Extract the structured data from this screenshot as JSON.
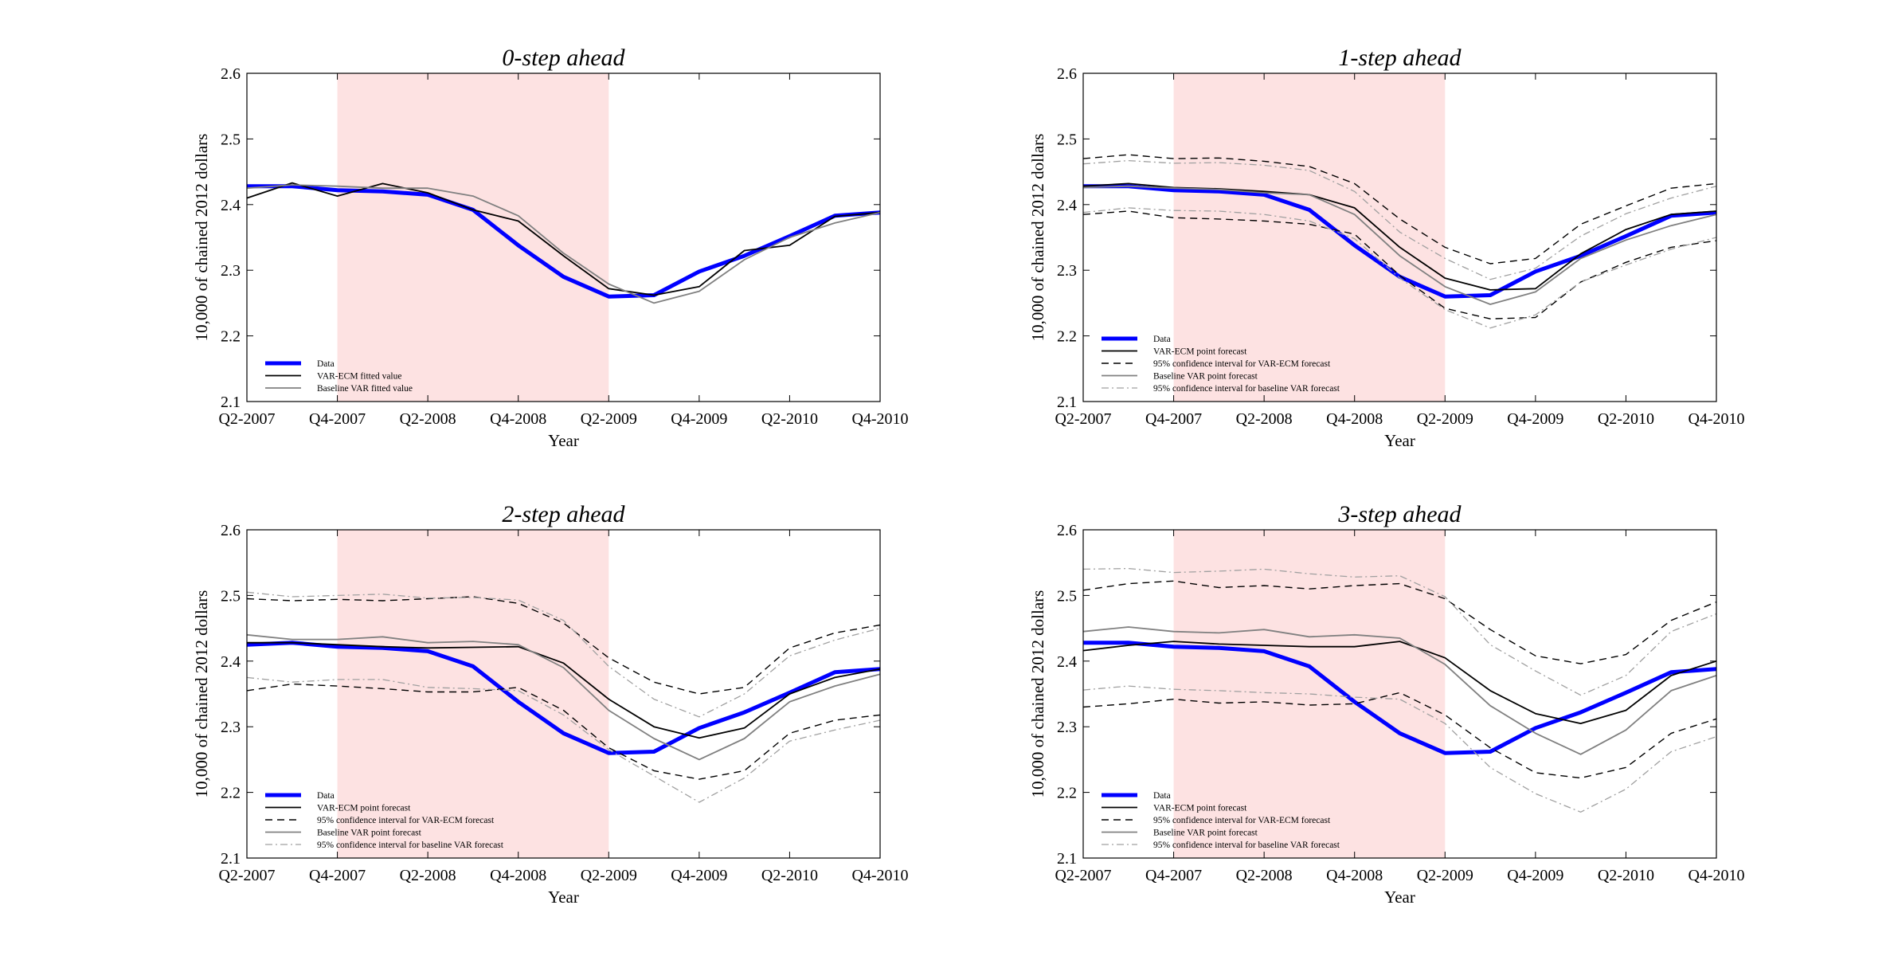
{
  "colors": {
    "data": "#0000ff",
    "varecm": "#000000",
    "baseline": "#808080",
    "recession_shade": "#fde2e2"
  },
  "x_ticks": [
    "Q2-2007",
    "Q4-2007",
    "Q2-2008",
    "Q4-2008",
    "Q2-2009",
    "Q4-2009",
    "Q2-2010",
    "Q4-2010"
  ],
  "y_ticks": [
    "2.1",
    "2.2",
    "2.3",
    "2.4",
    "2.5",
    "2.6"
  ],
  "chart_data": [
    {
      "type": "line",
      "title": "0-step ahead",
      "xlabel": "Year",
      "ylabel": "10,000 of chained 2012 dollars",
      "ylim": [
        2.1,
        2.6
      ],
      "x": [
        "Q2-2007",
        "Q3-2007",
        "Q4-2007",
        "Q1-2008",
        "Q2-2008",
        "Q3-2008",
        "Q4-2008",
        "Q1-2009",
        "Q2-2009",
        "Q3-2009",
        "Q4-2009",
        "Q1-2010",
        "Q2-2010",
        "Q3-2010",
        "Q4-2010"
      ],
      "shaded_region": [
        "Q4-2007",
        "Q2-2009"
      ],
      "grid": false,
      "legend_position": "bottom-left",
      "series": [
        {
          "name": "Data",
          "style": "data",
          "values": [
            2.428,
            2.428,
            2.422,
            2.42,
            2.415,
            2.392,
            2.338,
            2.29,
            2.26,
            2.262,
            2.298,
            2.322,
            2.352,
            2.383,
            2.388
          ]
        },
        {
          "name": "VAR-ECM fitted value",
          "style": "ecm",
          "values": [
            2.41,
            2.433,
            2.413,
            2.432,
            2.418,
            2.392,
            2.375,
            2.322,
            2.272,
            2.262,
            2.275,
            2.33,
            2.338,
            2.382,
            2.388
          ]
        },
        {
          "name": "Baseline VAR fitted value",
          "style": "base",
          "values": [
            2.425,
            2.43,
            2.428,
            2.425,
            2.425,
            2.413,
            2.383,
            2.326,
            2.279,
            2.25,
            2.268,
            2.316,
            2.35,
            2.372,
            2.388
          ]
        }
      ]
    },
    {
      "type": "line",
      "title": "1-step ahead",
      "xlabel": "Year",
      "ylabel": "10,000 of chained 2012 dollars",
      "ylim": [
        2.1,
        2.6
      ],
      "x": [
        "Q2-2007",
        "Q3-2007",
        "Q4-2007",
        "Q1-2008",
        "Q2-2008",
        "Q3-2008",
        "Q4-2008",
        "Q1-2009",
        "Q2-2009",
        "Q3-2009",
        "Q4-2009",
        "Q1-2010",
        "Q2-2010",
        "Q3-2010",
        "Q4-2010"
      ],
      "shaded_region": [
        "Q4-2007",
        "Q2-2009"
      ],
      "grid": false,
      "legend_position": "bottom-left",
      "series": [
        {
          "name": "Data",
          "style": "data",
          "values": [
            2.428,
            2.428,
            2.422,
            2.42,
            2.415,
            2.392,
            2.338,
            2.29,
            2.26,
            2.262,
            2.298,
            2.322,
            2.352,
            2.383,
            2.388
          ]
        },
        {
          "name": "VAR-ECM point forecast",
          "style": "ecm",
          "values": [
            2.428,
            2.432,
            2.426,
            2.424,
            2.42,
            2.415,
            2.395,
            2.335,
            2.288,
            2.27,
            2.272,
            2.325,
            2.362,
            2.385,
            2.39
          ]
        },
        {
          "name": "95% confidence interval for VAR-ECM forecast",
          "style": "ecm_ci",
          "values": [
            2.47,
            2.476,
            2.47,
            2.471,
            2.466,
            2.458,
            2.432,
            2.378,
            2.335,
            2.31,
            2.318,
            2.37,
            2.398,
            2.425,
            2.432
          ]
        },
        {
          "name": "",
          "style": "ecm_ci",
          "values": [
            2.385,
            2.39,
            2.38,
            2.378,
            2.375,
            2.37,
            2.355,
            2.292,
            2.242,
            2.226,
            2.228,
            2.282,
            2.312,
            2.335,
            2.345
          ]
        },
        {
          "name": "Baseline VAR point forecast",
          "style": "base",
          "values": [
            2.426,
            2.428,
            2.425,
            2.423,
            2.418,
            2.415,
            2.385,
            2.322,
            2.275,
            2.248,
            2.267,
            2.318,
            2.346,
            2.368,
            2.385
          ]
        },
        {
          "name": "95% confidence interval for baseline VAR forecast",
          "style": "base_ci",
          "values": [
            2.462,
            2.467,
            2.463,
            2.464,
            2.46,
            2.452,
            2.42,
            2.358,
            2.318,
            2.286,
            2.303,
            2.352,
            2.386,
            2.41,
            2.428
          ]
        },
        {
          "name": "",
          "style": "base_ci",
          "values": [
            2.388,
            2.395,
            2.391,
            2.39,
            2.385,
            2.375,
            2.348,
            2.288,
            2.24,
            2.212,
            2.232,
            2.282,
            2.308,
            2.332,
            2.35
          ]
        }
      ]
    },
    {
      "type": "line",
      "title": "2-step ahead",
      "xlabel": "Year",
      "ylabel": "10,000 of chained 2012 dollars",
      "ylim": [
        2.1,
        2.6
      ],
      "x": [
        "Q2-2007",
        "Q3-2007",
        "Q4-2007",
        "Q1-2008",
        "Q2-2008",
        "Q3-2008",
        "Q4-2008",
        "Q1-2009",
        "Q2-2009",
        "Q3-2009",
        "Q4-2009",
        "Q1-2010",
        "Q2-2010",
        "Q3-2010",
        "Q4-2010"
      ],
      "shaded_region": [
        "Q4-2007",
        "Q2-2009"
      ],
      "grid": false,
      "legend_position": "bottom-left",
      "series": [
        {
          "name": "Data",
          "style": "data",
          "values": [
            2.425,
            2.428,
            2.422,
            2.42,
            2.415,
            2.392,
            2.338,
            2.29,
            2.26,
            2.262,
            2.298,
            2.322,
            2.352,
            2.383,
            2.388
          ]
        },
        {
          "name": "VAR-ECM point forecast",
          "style": "ecm",
          "values": [
            2.428,
            2.428,
            2.425,
            2.422,
            2.42,
            2.421,
            2.422,
            2.397,
            2.342,
            2.3,
            2.283,
            2.298,
            2.35,
            2.375,
            2.388
          ]
        },
        {
          "name": "95% confidence interval for VAR-ECM forecast",
          "style": "ecm_ci",
          "values": [
            2.495,
            2.492,
            2.494,
            2.492,
            2.495,
            2.498,
            2.488,
            2.458,
            2.405,
            2.368,
            2.35,
            2.36,
            2.42,
            2.443,
            2.455
          ]
        },
        {
          "name": "",
          "style": "ecm_ci",
          "values": [
            2.355,
            2.365,
            2.362,
            2.358,
            2.353,
            2.353,
            2.36,
            2.325,
            2.268,
            2.233,
            2.22,
            2.233,
            2.29,
            2.31,
            2.318
          ]
        },
        {
          "name": "Baseline VAR point forecast",
          "style": "base",
          "values": [
            2.44,
            2.433,
            2.433,
            2.437,
            2.428,
            2.43,
            2.425,
            2.39,
            2.325,
            2.282,
            2.25,
            2.282,
            2.338,
            2.362,
            2.38
          ]
        },
        {
          "name": "95% confidence interval for baseline VAR forecast",
          "style": "base_ci",
          "values": [
            2.505,
            2.498,
            2.5,
            2.502,
            2.496,
            2.497,
            2.493,
            2.462,
            2.392,
            2.342,
            2.315,
            2.35,
            2.408,
            2.432,
            2.45
          ]
        },
        {
          "name": "",
          "style": "base_ci",
          "values": [
            2.375,
            2.368,
            2.372,
            2.372,
            2.36,
            2.358,
            2.355,
            2.318,
            2.265,
            2.225,
            2.185,
            2.222,
            2.278,
            2.295,
            2.31
          ]
        }
      ]
    },
    {
      "type": "line",
      "title": "3-step ahead",
      "xlabel": "Year",
      "ylabel": "10,000 of chained 2012 dollars",
      "ylim": [
        2.1,
        2.6
      ],
      "x": [
        "Q2-2007",
        "Q3-2007",
        "Q4-2007",
        "Q1-2008",
        "Q2-2008",
        "Q3-2008",
        "Q4-2008",
        "Q1-2009",
        "Q2-2009",
        "Q3-2009",
        "Q4-2009",
        "Q1-2010",
        "Q2-2010",
        "Q3-2010",
        "Q4-2010"
      ],
      "shaded_region": [
        "Q4-2007",
        "Q2-2009"
      ],
      "grid": false,
      "legend_position": "bottom-left",
      "series": [
        {
          "name": "Data",
          "style": "data",
          "values": [
            2.428,
            2.428,
            2.422,
            2.42,
            2.415,
            2.392,
            2.338,
            2.29,
            2.26,
            2.262,
            2.298,
            2.322,
            2.352,
            2.383,
            2.388
          ]
        },
        {
          "name": "VAR-ECM point forecast",
          "style": "ecm",
          "values": [
            2.416,
            2.424,
            2.43,
            2.426,
            2.424,
            2.422,
            2.422,
            2.43,
            2.405,
            2.355,
            2.32,
            2.305,
            2.325,
            2.378,
            2.4
          ]
        },
        {
          "name": "95% confidence interval for VAR-ECM forecast",
          "style": "ecm_ci",
          "values": [
            2.508,
            2.518,
            2.522,
            2.512,
            2.515,
            2.51,
            2.515,
            2.518,
            2.495,
            2.448,
            2.408,
            2.396,
            2.41,
            2.462,
            2.49
          ]
        },
        {
          "name": "",
          "style": "ecm_ci",
          "values": [
            2.33,
            2.335,
            2.342,
            2.336,
            2.338,
            2.333,
            2.335,
            2.352,
            2.318,
            2.268,
            2.23,
            2.222,
            2.238,
            2.29,
            2.312
          ]
        },
        {
          "name": "Baseline VAR point forecast",
          "style": "base",
          "values": [
            2.445,
            2.452,
            2.445,
            2.443,
            2.448,
            2.437,
            2.44,
            2.435,
            2.395,
            2.332,
            2.29,
            2.258,
            2.295,
            2.355,
            2.378
          ]
        },
        {
          "name": "95% confidence interval for baseline VAR forecast",
          "style": "base_ci",
          "values": [
            2.54,
            2.541,
            2.535,
            2.537,
            2.54,
            2.533,
            2.528,
            2.53,
            2.498,
            2.425,
            2.385,
            2.348,
            2.378,
            2.445,
            2.472
          ]
        },
        {
          "name": "",
          "style": "base_ci",
          "values": [
            2.356,
            2.362,
            2.357,
            2.355,
            2.352,
            2.35,
            2.345,
            2.342,
            2.305,
            2.238,
            2.198,
            2.17,
            2.205,
            2.262,
            2.285
          ]
        }
      ]
    }
  ]
}
